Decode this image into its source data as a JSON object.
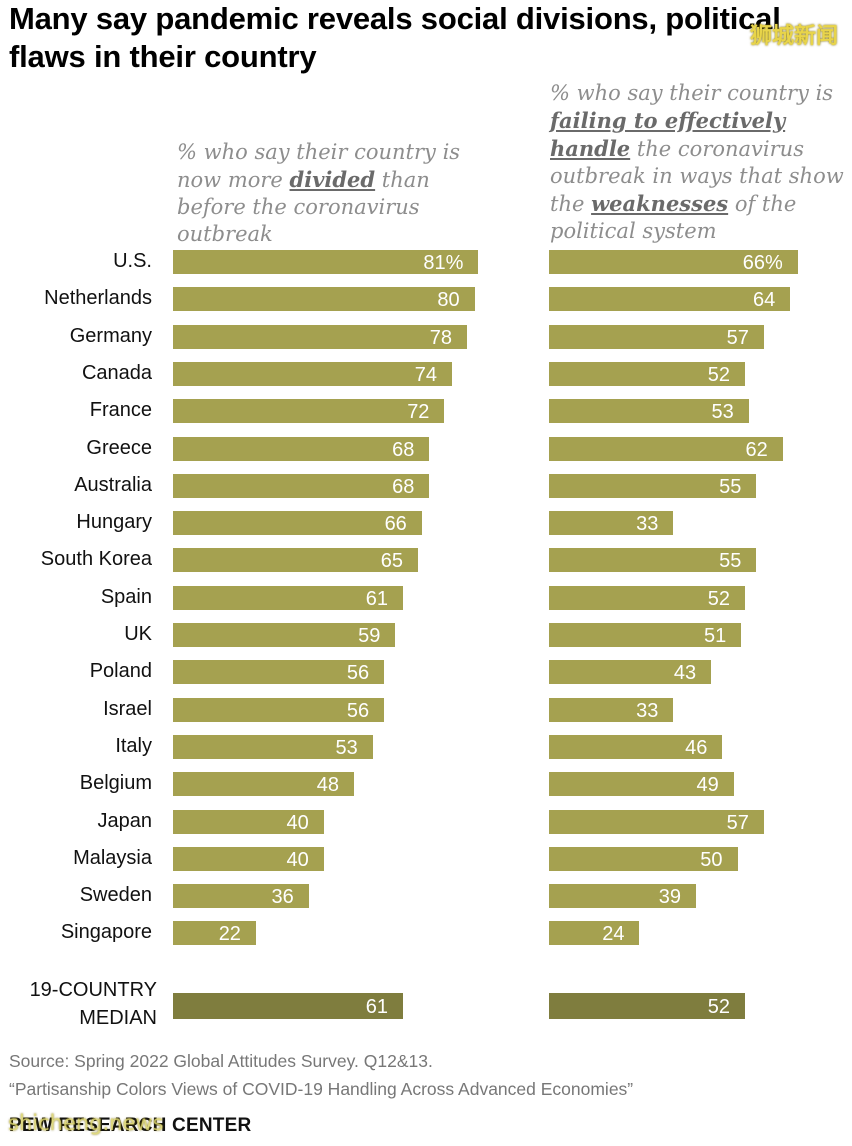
{
  "title": {
    "line1": "Many say pandemic reveals social divisions, political",
    "line2": "flaws in their country"
  },
  "watermarks": {
    "top": "狮城新闻",
    "bottom": "shicheng.news"
  },
  "chart_data": {
    "type": "bar",
    "orientation": "horizontal",
    "categories": [
      "U.S.",
      "Netherlands",
      "Germany",
      "Canada",
      "France",
      "Greece",
      "Australia",
      "Hungary",
      "South Korea",
      "Spain",
      "UK",
      "Poland",
      "Israel",
      "Italy",
      "Belgium",
      "Japan",
      "Malaysia",
      "Sweden",
      "Singapore"
    ],
    "series": [
      {
        "header": {
          "pre": "% who say their country is now more ",
          "emph": "divided",
          "post": " than before the coronavirus outbreak"
        },
        "values": [
          81,
          80,
          78,
          74,
          72,
          68,
          68,
          66,
          65,
          61,
          59,
          56,
          56,
          53,
          48,
          40,
          40,
          36,
          22
        ],
        "labels": [
          "81%",
          "80",
          "78",
          "74",
          "72",
          "68",
          "68",
          "66",
          "65",
          "61",
          "59",
          "56",
          "56",
          "53",
          "48",
          "40",
          "40",
          "36",
          "22"
        ],
        "median": 61,
        "median_label": "61",
        "color": "#a5a150"
      },
      {
        "header": {
          "pre": "% who say their country is ",
          "emph1": "failing to effectively handle",
          "mid": " the coronavirus outbreak in ways that show the ",
          "emph2": "weaknesses",
          "post": " of the political system"
        },
        "values": [
          66,
          64,
          57,
          52,
          53,
          62,
          55,
          33,
          55,
          52,
          51,
          43,
          33,
          46,
          49,
          57,
          50,
          39,
          24
        ],
        "labels": [
          "66%",
          "64",
          "57",
          "52",
          "53",
          "62",
          "55",
          "33",
          "55",
          "52",
          "51",
          "43",
          "33",
          "46",
          "49",
          "57",
          "50",
          "39",
          "24"
        ],
        "median": 52,
        "median_label": "52",
        "color": "#a5a150"
      }
    ],
    "median_category": {
      "line1": "19-COUNTRY",
      "line2": "MEDIAN"
    },
    "median_color": "#7f7d3e",
    "xlim": [
      0,
      100
    ]
  },
  "source": {
    "line1": "Source: Spring 2022 Global Attitudes Survey. Q12&13.",
    "line2": "“Partisanship Colors Views of COVID-19 Handling Across Advanced Economies”"
  },
  "footer": {
    "logo": "PEW RESEARCH CENTER"
  }
}
